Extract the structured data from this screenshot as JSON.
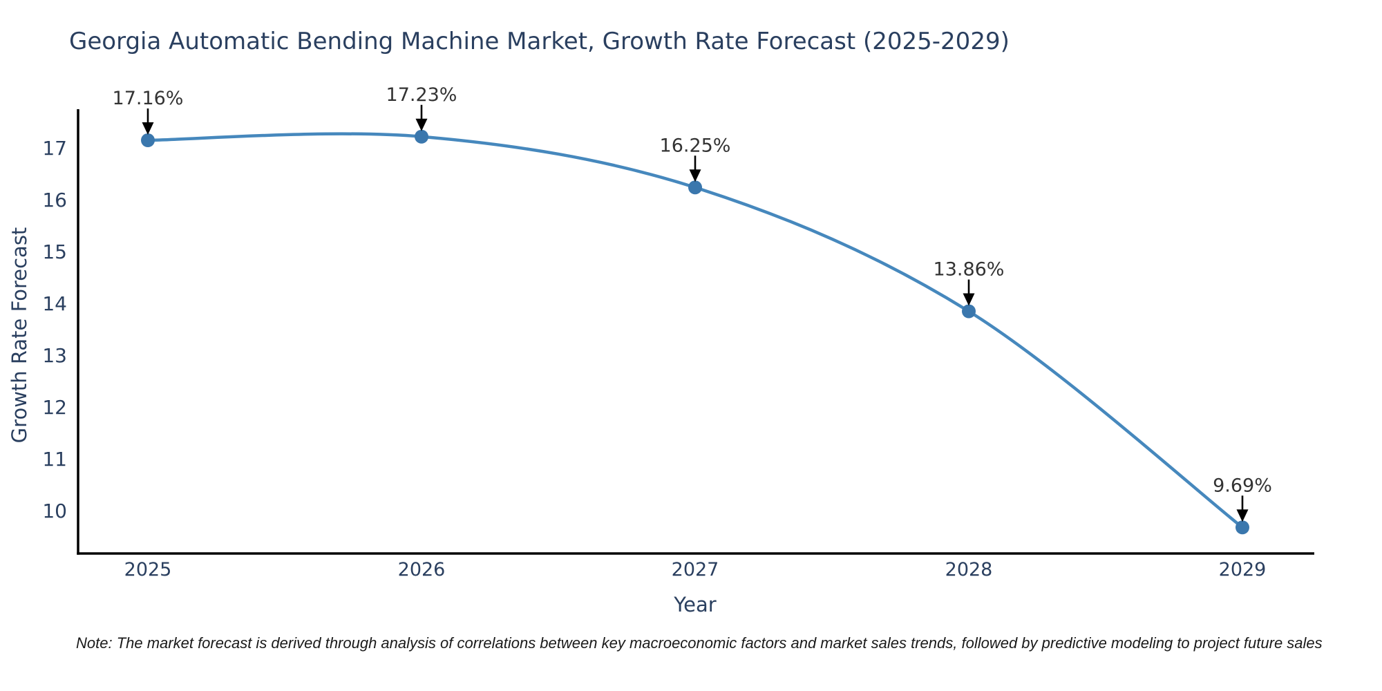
{
  "chart": {
    "title": "Georgia Automatic Bending Machine Market, Growth Rate Forecast (2025-2029)",
    "xlabel": "Year",
    "ylabel": "Growth Rate Forecast",
    "note": "Note: The market forecast is derived through analysis of correlations between key macroeconomic factors and market sales trends, followed by predictive modeling to project future sales",
    "colors": {
      "line": "#4688bd",
      "marker": "#3a77ad",
      "axis": "#000000",
      "title": "#2a3f5f",
      "tick": "#2a3f5f",
      "annotation": "#333333",
      "arrow": "#000000",
      "note": "#1a1a1a",
      "background": "#ffffff"
    }
  },
  "chart_data": {
    "type": "line",
    "title": "Georgia Automatic Bending Machine Market, Growth Rate Forecast (2025-2029)",
    "xlabel": "Year",
    "ylabel": "Growth Rate Forecast",
    "categories": [
      "2025",
      "2026",
      "2027",
      "2028",
      "2029"
    ],
    "series": [
      {
        "name": "Growth Rate Forecast",
        "values": [
          17.16,
          17.23,
          16.25,
          13.86,
          9.69
        ],
        "point_labels": [
          "17.16%",
          "17.23%",
          "16.25%",
          "13.86%",
          "9.69%"
        ]
      }
    ],
    "yticks": [
      10,
      11,
      12,
      13,
      14,
      15,
      16,
      17
    ],
    "ylim": [
      9.15,
      17.75
    ],
    "line_shape": "spline",
    "grid": false,
    "legend": "none",
    "annotations": "value labels with downward arrows above each point",
    "spines": "left and bottom only"
  }
}
